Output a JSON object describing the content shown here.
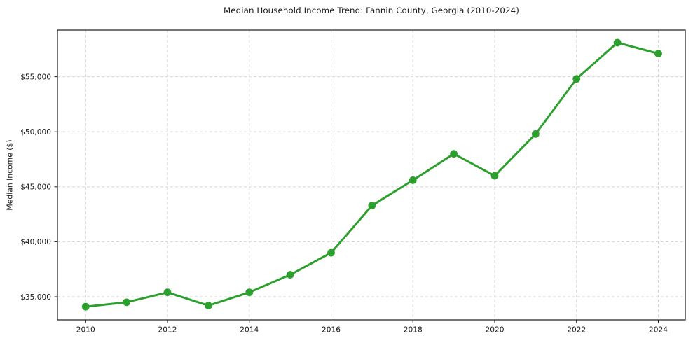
{
  "chart_data": {
    "type": "line",
    "title": "Median Household Income Trend: Fannin County, Georgia (2010-2024)",
    "xlabel": "",
    "ylabel": "Median Income ($)",
    "x": [
      2010,
      2011,
      2012,
      2013,
      2014,
      2015,
      2016,
      2017,
      2018,
      2019,
      2020,
      2021,
      2022,
      2023,
      2024
    ],
    "values": [
      34100,
      34500,
      35400,
      34200,
      35400,
      37000,
      39000,
      43300,
      45600,
      48000,
      46000,
      49800,
      54800,
      58100,
      57100
    ],
    "series_name": "Median household income",
    "xticks": [
      2010,
      2012,
      2014,
      2016,
      2018,
      2020,
      2022,
      2024
    ],
    "xtick_labels": [
      "2010",
      "2012",
      "2014",
      "2016",
      "2018",
      "2020",
      "2022",
      "2024"
    ],
    "yticks": [
      35000,
      40000,
      45000,
      50000,
      55000
    ],
    "ytick_labels": [
      "$35,000",
      "$40,000",
      "$45,000",
      "$50,000",
      "$55,000"
    ],
    "xlim": [
      2009.31,
      2024.66
    ],
    "ylim": [
      32900,
      59240
    ],
    "grid": "on",
    "grid_style": "dashed",
    "legend_position": "none",
    "line_color": "#2ca02c",
    "marker": "circle",
    "grid_color": "#d5d5d5",
    "spine_color": "#1a1a1a",
    "background_color": "#ffffff"
  }
}
